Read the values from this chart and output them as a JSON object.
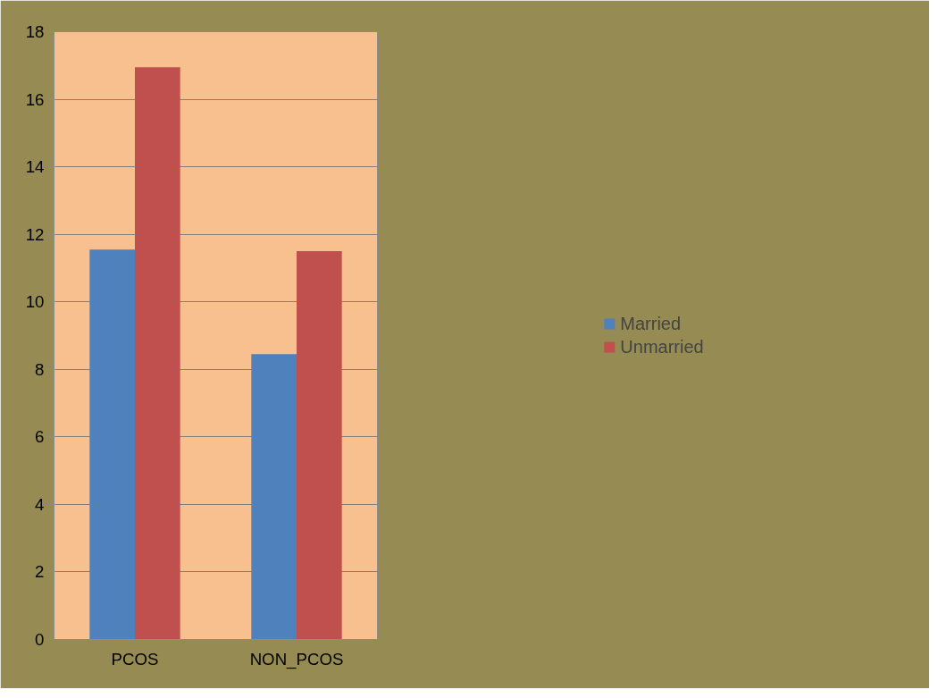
{
  "chart_data": {
    "type": "bar",
    "categories": [
      "PCOS",
      "NON_PCOS"
    ],
    "series": [
      {
        "name": "Married",
        "color": "#4f81bd",
        "values": [
          11.55,
          8.45
        ]
      },
      {
        "name": "Unmarried",
        "color": "#c0504d",
        "values": [
          16.95,
          11.5
        ]
      }
    ],
    "ylim": [
      0,
      18
    ],
    "yticks": [
      0,
      2,
      4,
      6,
      8,
      10,
      12,
      14,
      16,
      18
    ],
    "grid": "y",
    "legend": "right"
  }
}
